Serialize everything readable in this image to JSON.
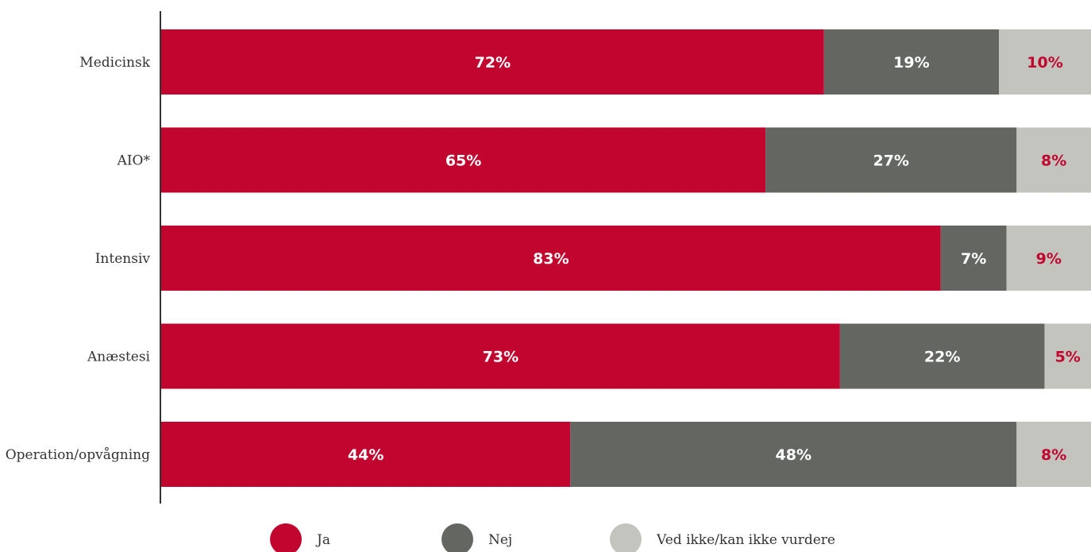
{
  "chart_data": {
    "type": "bar",
    "orientation": "horizontal",
    "stacked": true,
    "categories": [
      "Medicinsk",
      "AIO*",
      "Intensiv",
      "Anæstesi",
      "Operation/opvågning"
    ],
    "series": [
      {
        "name": "Ja",
        "color": "#c1052f",
        "label_color": "#ffffff",
        "values": [
          72,
          65,
          83,
          73,
          44
        ]
      },
      {
        "name": "Nej",
        "color": "#646761",
        "label_color": "#ffffff",
        "values": [
          19,
          27,
          7,
          22,
          48
        ]
      },
      {
        "name": "Ved ikke/kan ikke vurdere",
        "color": "#c3c4be",
        "label_color": "#c1052f",
        "values": [
          10,
          8,
          9,
          5,
          8
        ]
      }
    ],
    "value_labels": [
      [
        "72%",
        "19%",
        "10%"
      ],
      [
        "65%",
        "27%",
        "8%"
      ],
      [
        "83%",
        "7%",
        "9%"
      ],
      [
        "73%",
        "22%",
        "5%"
      ],
      [
        "44%",
        "48%",
        "8%"
      ]
    ],
    "xlim": [
      0,
      100
    ],
    "grid": false,
    "legend_position": "bottom"
  }
}
